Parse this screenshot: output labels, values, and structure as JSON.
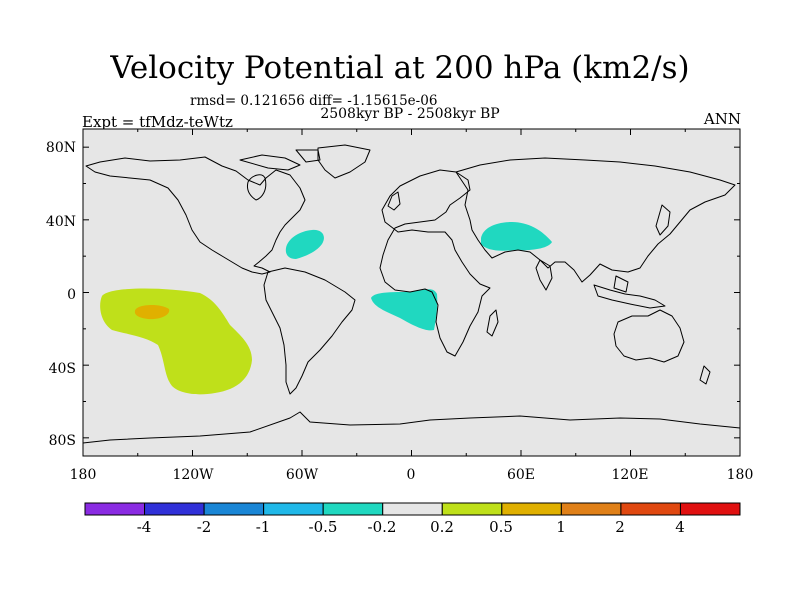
{
  "title": "Velocity Potential at 200 hPa (km2/s)",
  "stats": "rmsd= 0.121656 diff= -1.15615e-06",
  "subtitle": "2508kyr BP - 2508kyr BP",
  "experiment": "Expt = tfMdz-teWtz",
  "season": "ANN",
  "map": {
    "background_color": "#e6e6e6",
    "lat_ticks": [
      "80N",
      "40N",
      "0",
      "40S",
      "80S"
    ],
    "lon_ticks": [
      "180",
      "120W",
      "60W",
      "0",
      "60E",
      "120E",
      "180"
    ]
  },
  "colorbar": {
    "colors": [
      "#8a2be2",
      "#3030d8",
      "#1a86d6",
      "#20b8e8",
      "#20d8c0",
      "#e6e6e6",
      "#bfe01a",
      "#e0b000",
      "#e08018",
      "#e04810",
      "#e01010"
    ],
    "labels": [
      "-4",
      "-2",
      "-1",
      "-0.5",
      "-0.2",
      "0.2",
      "0.5",
      "1",
      "2",
      "4"
    ]
  },
  "anomalies": [
    {
      "name": "north-atlantic-negative",
      "level": "-0.5 to -0.2"
    },
    {
      "name": "middle-east-negative",
      "level": "-0.5 to -0.2"
    },
    {
      "name": "tropical-atlantic-africa-negative",
      "level": "-0.5 to -0.2"
    },
    {
      "name": "south-pacific-positive",
      "level": "0.2 to 0.5"
    },
    {
      "name": "south-pacific-core-positive",
      "level": "0.5 to 1"
    }
  ]
}
